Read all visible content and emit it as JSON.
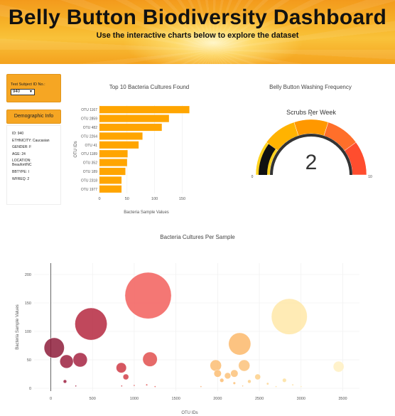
{
  "header": {
    "title": "Belly Button Biodiversity Dashboard",
    "subtitle": "Use the interactive charts below to explore the dataset"
  },
  "sidebar": {
    "select_label": "Test Subject ID No.:",
    "selected_id": "940",
    "demo_title": "Demographic Info",
    "demo_lines": [
      "ID: 940",
      "ETHNICITY: Caucasian",
      "GENDER: F",
      "AGE: 24",
      "LOCATION:",
      "Beaufort/NC",
      "BBTYPE: I",
      "WFREQ: 2"
    ]
  },
  "colors": {
    "accent": "#f6a623",
    "bar": "#ffa500"
  },
  "chart_data": [
    {
      "type": "bar",
      "orientation": "horizontal",
      "title": "Top 10 Bacteria Cultures Found",
      "xlabel": "Bacteria Sample Values",
      "ylabel": "OTU IDs",
      "categories": [
        "OTU 1167",
        "OTU 2859",
        "OTU 482",
        "OTU 2264",
        "OTU 41",
        "OTU 1189",
        "OTU 352",
        "OTU 189",
        "OTU 2318",
        "OTU 1977"
      ],
      "values": [
        163,
        126,
        113,
        78,
        71,
        51,
        50,
        47,
        40,
        40
      ],
      "xticks": [
        0,
        50,
        100,
        150
      ],
      "xlim": [
        0,
        170
      ]
    },
    {
      "type": "gauge",
      "title": "Belly Button Washing Frequency",
      "subtitle": "Scrubs Per Week",
      "value": 2,
      "range": [
        0,
        10
      ],
      "tick_labels": [
        "0",
        "5",
        "10"
      ],
      "band_colors": [
        "#ffd21f",
        "#ffb300",
        "#ff9800",
        "#ff6f2a",
        "#ff4d2e"
      ]
    },
    {
      "type": "scatter",
      "title": "Bacteria Cultures Per Sample",
      "xlabel": "OTU IDs",
      "ylabel": "Bacteria Sample Values",
      "xlim": [
        -200,
        3700
      ],
      "ylim": [
        -5,
        220
      ],
      "xticks": [
        0,
        500,
        1000,
        1500,
        2000,
        2500,
        3000,
        3500
      ],
      "yticks": [
        0,
        50,
        100,
        150,
        200
      ],
      "points": [
        {
          "x": 1167,
          "y": 163,
          "color": "#f25f5c"
        },
        {
          "x": 2859,
          "y": 126,
          "color": "#ffe8a8"
        },
        {
          "x": 482,
          "y": 113,
          "color": "#b5283f"
        },
        {
          "x": 2264,
          "y": 78,
          "color": "#fbb96b"
        },
        {
          "x": 41,
          "y": 71,
          "color": "#8e1d3b"
        },
        {
          "x": 1189,
          "y": 51,
          "color": "#e2504f"
        },
        {
          "x": 352,
          "y": 50,
          "color": "#a62342"
        },
        {
          "x": 189,
          "y": 47,
          "color": "#9c2140"
        },
        {
          "x": 2318,
          "y": 40,
          "color": "#fcc27a"
        },
        {
          "x": 1977,
          "y": 40,
          "color": "#fbbd73"
        },
        {
          "x": 845,
          "y": 36,
          "color": "#cf3a45"
        },
        {
          "x": 3450,
          "y": 38,
          "color": "#fff0c2"
        },
        {
          "x": 2000,
          "y": 26,
          "color": "#fbbd73"
        },
        {
          "x": 2120,
          "y": 22,
          "color": "#fcc27a"
        },
        {
          "x": 2200,
          "y": 26,
          "color": "#fcc27a"
        },
        {
          "x": 2480,
          "y": 20,
          "color": "#fdd08a"
        },
        {
          "x": 900,
          "y": 20,
          "color": "#d2404a"
        },
        {
          "x": 2050,
          "y": 14,
          "color": "#fbbd73"
        },
        {
          "x": 2380,
          "y": 12,
          "color": "#fdcf88"
        },
        {
          "x": 2800,
          "y": 14,
          "color": "#fde0a0"
        },
        {
          "x": 2200,
          "y": 9,
          "color": "#fcc27a"
        },
        {
          "x": 2600,
          "y": 8,
          "color": "#fdd590"
        },
        {
          "x": 2300,
          "y": 4,
          "color": "#fcc27a"
        },
        {
          "x": 2900,
          "y": 6,
          "color": "#fde2a4"
        },
        {
          "x": 170,
          "y": 12,
          "color": "#9e2141"
        },
        {
          "x": 1000,
          "y": 5,
          "color": "#d94a4b"
        },
        {
          "x": 1150,
          "y": 6,
          "color": "#e05050"
        },
        {
          "x": 1250,
          "y": 3,
          "color": "#e35450"
        },
        {
          "x": 300,
          "y": 4,
          "color": "#a62342"
        },
        {
          "x": 850,
          "y": 4,
          "color": "#cf3a45"
        },
        {
          "x": 3000,
          "y": 3,
          "color": "#fde6aa"
        },
        {
          "x": 1800,
          "y": 3,
          "color": "#f7a868"
        },
        {
          "x": 2700,
          "y": 3,
          "color": "#fdda96"
        }
      ]
    }
  ]
}
